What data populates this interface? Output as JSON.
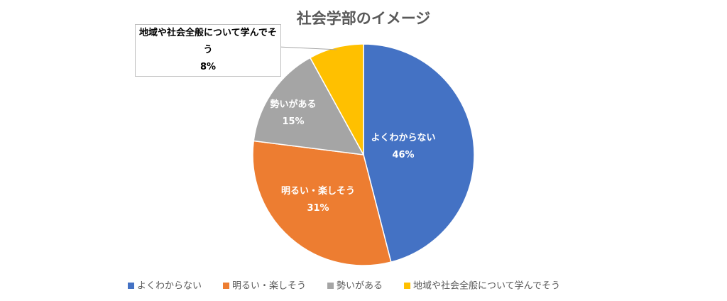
{
  "chart_data": {
    "type": "pie",
    "title": "社会学部のイメージ",
    "categories": [
      "よくわからない",
      "明るい・楽しそう",
      "勢いがある",
      "地域や社会全般について学んでそう"
    ],
    "values": [
      46,
      31,
      15,
      8
    ],
    "value_labels": [
      "46%",
      "31%",
      "15%",
      "8%"
    ],
    "colors": [
      "#4472c4",
      "#ed7d31",
      "#a5a5a5",
      "#ffc000"
    ],
    "legend": "bottom"
  }
}
